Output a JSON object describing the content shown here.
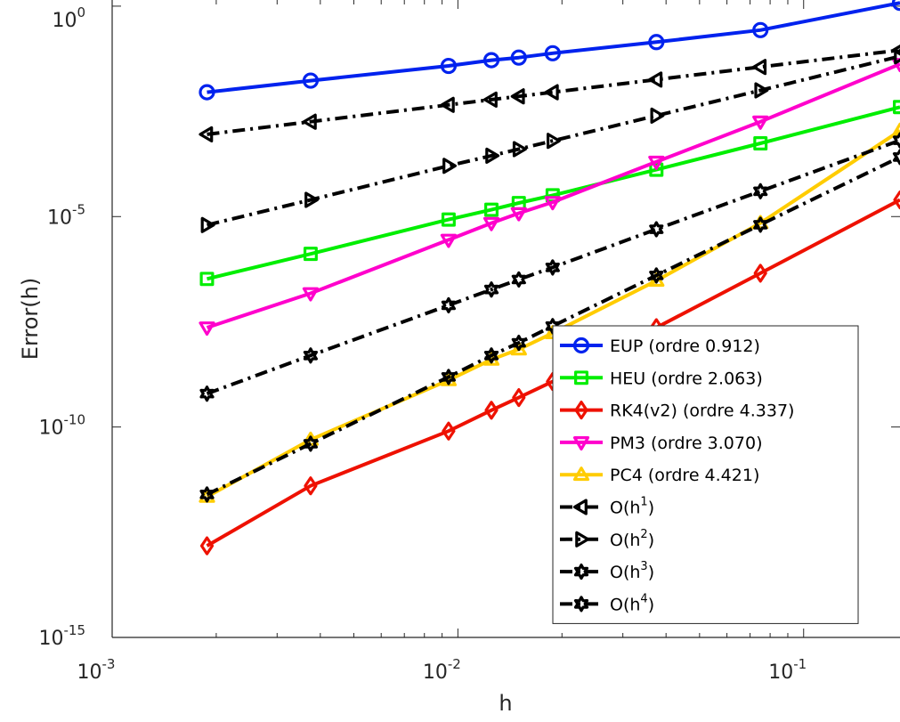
{
  "chart_data": {
    "type": "line",
    "xlabel": "h",
    "ylabel": "Error(h)",
    "xscale": "log",
    "yscale": "log",
    "xlim": [
      0.001,
      0.19
    ],
    "ylim": [
      1e-15,
      1.4
    ],
    "x_ticks": [
      {
        "base": "10",
        "exp": "-3",
        "value": 0.001
      },
      {
        "base": "10",
        "exp": "-2",
        "value": 0.01
      },
      {
        "base": "10",
        "exp": "-1",
        "value": 0.1
      }
    ],
    "y_ticks": [
      {
        "base": "10",
        "exp": "-15",
        "value": 1e-15
      },
      {
        "base": "10",
        "exp": "-10",
        "value": 1e-10
      },
      {
        "base": "10",
        "exp": "-5",
        "value": 1e-05
      },
      {
        "base": "10",
        "exp": "0",
        "value": 1
      }
    ],
    "legend_position": "lower-right",
    "x": [
      0.00188,
      0.00375,
      0.0094,
      0.0125,
      0.015,
      0.0188,
      0.0375,
      0.075,
      0.19
    ],
    "series": [
      {
        "name": "EUP (ordre 0.912)",
        "label_parts": [
          {
            "t": "EUP (ordre 0.912)"
          }
        ],
        "color": "#0022ee",
        "dash": "solid",
        "marker": "circle",
        "values": [
          0.009,
          0.017,
          0.038,
          0.052,
          0.06,
          0.076,
          0.14,
          0.27,
          1.2
        ]
      },
      {
        "name": "HEU (ordre 2.063)",
        "label_parts": [
          {
            "t": "HEU (ordre 2.063)"
          }
        ],
        "color": "#00ee00",
        "dash": "solid",
        "marker": "square",
        "values": [
          3.3e-07,
          1.3e-06,
          8.5e-06,
          1.45e-05,
          2.1e-05,
          3.2e-05,
          0.00013,
          0.00055,
          0.004
        ]
      },
      {
        "name": "RK4(v2) (ordre 4.337)",
        "label_parts": [
          {
            "t": "RK4(v2) (ordre 4.337)"
          }
        ],
        "color": "#ee1100",
        "dash": "solid",
        "marker": "diamond",
        "values": [
          1.5e-13,
          4e-12,
          8e-11,
          2.5e-10,
          5e-10,
          1.2e-09,
          2.3e-08,
          4.5e-07,
          2.5e-05
        ]
      },
      {
        "name": "PM3 (ordre 3.070)",
        "label_parts": [
          {
            "t": "PM3 (ordre 3.070)"
          }
        ],
        "color": "#ff00cc",
        "dash": "solid",
        "marker": "triangle-down",
        "values": [
          2.3e-08,
          1.5e-07,
          2.8e-06,
          7e-06,
          1.2e-05,
          2.2e-05,
          0.0002,
          0.0018,
          0.042
        ]
      },
      {
        "name": "PC4 (ordre 4.421)",
        "label_parts": [
          {
            "t": "PC4 (ordre 4.421)"
          }
        ],
        "color": "#ffcc00",
        "dash": "solid",
        "marker": "triangle-up",
        "values": [
          2.2e-12,
          5e-11,
          1.3e-09,
          4e-09,
          7e-09,
          1.7e-08,
          3e-07,
          7e-06,
          0.0011
        ]
      },
      {
        "name": "O(h1)",
        "label_parts": [
          {
            "t": "O(h"
          },
          {
            "t": "1",
            "sup": true
          },
          {
            "t": ")"
          }
        ],
        "color": "#000000",
        "dash": "dashdot",
        "marker": "triangle-left",
        "values": [
          0.0009,
          0.0018,
          0.0045,
          0.006,
          0.0072,
          0.009,
          0.018,
          0.036,
          0.09
        ]
      },
      {
        "name": "O(h2)",
        "label_parts": [
          {
            "t": "O(h"
          },
          {
            "t": "2",
            "sup": true
          },
          {
            "t": ")"
          }
        ],
        "color": "#000000",
        "dash": "dashdot",
        "marker": "triangle-right",
        "values": [
          6.3e-06,
          2.5e-05,
          0.00016,
          0.00028,
          0.0004,
          0.00063,
          0.0025,
          0.01,
          0.0644
        ]
      },
      {
        "name": "O(h3)",
        "label_parts": [
          {
            "t": "O(h"
          },
          {
            "t": "3",
            "sup": true
          },
          {
            "t": ")"
          }
        ],
        "color": "#000000",
        "dash": "dashdot",
        "marker": "hexagram",
        "values": [
          6.2e-10,
          5e-09,
          7.8e-08,
          1.85e-07,
          3.2e-07,
          6.2e-07,
          5e-06,
          4e-05,
          0.00065
        ]
      },
      {
        "name": "O(h4)",
        "label_parts": [
          {
            "t": "O(h"
          },
          {
            "t": "4",
            "sup": true
          },
          {
            "t": ")"
          }
        ],
        "color": "#000000",
        "dash": "dashdot",
        "marker": "hexagram",
        "values": [
          2.5e-12,
          4e-11,
          1.55e-09,
          5e-09,
          1e-08,
          2.5e-08,
          4e-07,
          6.4e-06,
          0.00026
        ]
      }
    ]
  }
}
